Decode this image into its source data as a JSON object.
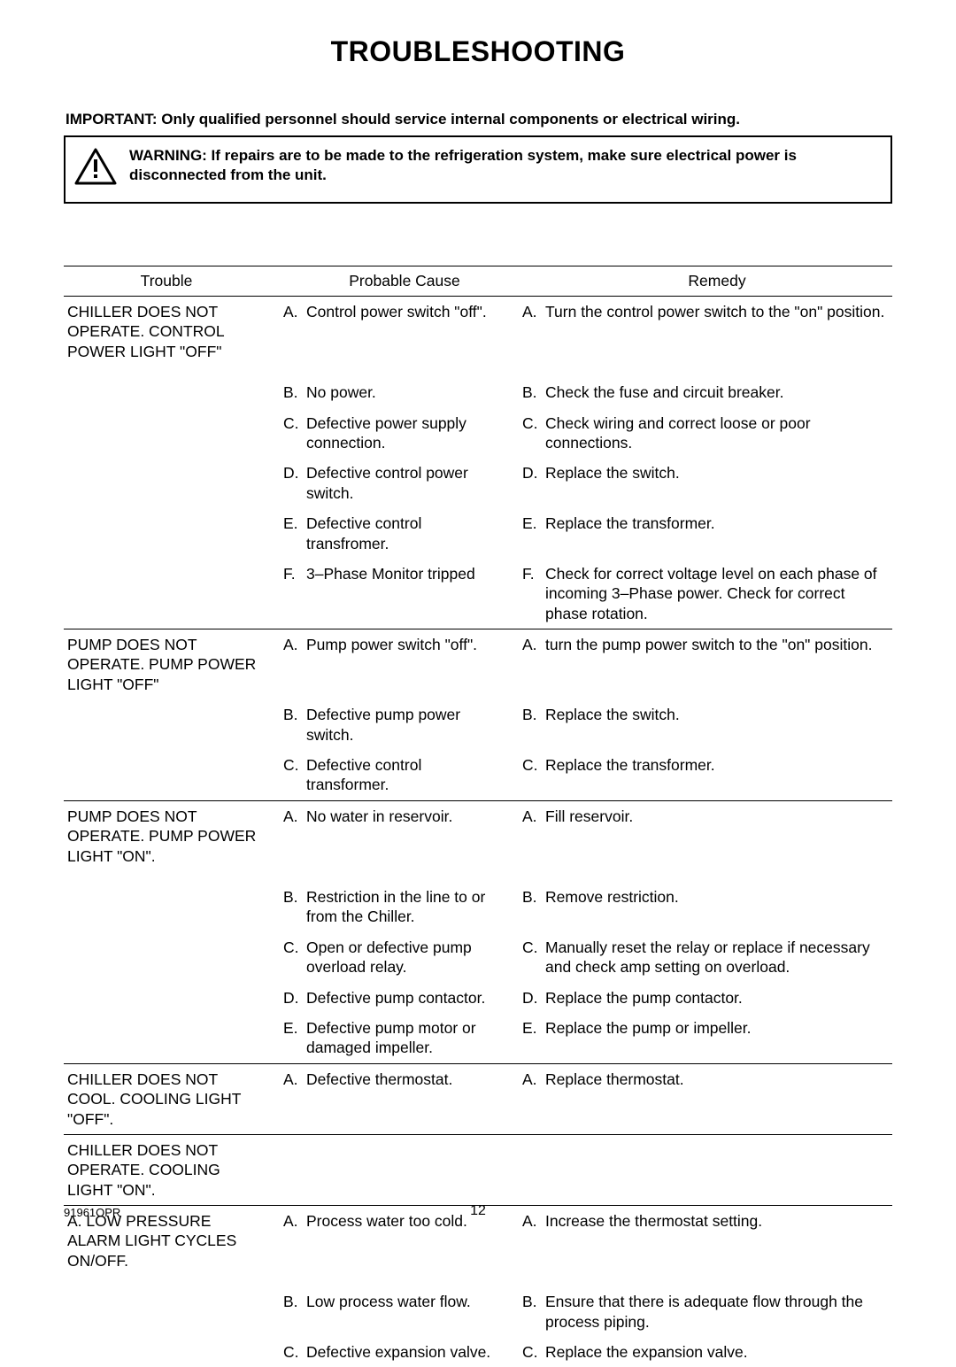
{
  "title": "TROUBLESHOOTING",
  "important": "IMPORTANT:  Only qualified personnel should service internal components or electrical wiring.",
  "warning": "WARNING:   If repairs are to be made to the refrigeration system, make sure electrical power is disconnected from the unit.",
  "headers": {
    "trouble": "Trouble",
    "cause": "Probable Cause",
    "remedy": "Remedy"
  },
  "groups": [
    {
      "trouble": "CHILLER DOES NOT OPERATE. CONTROL POWER LIGHT \"OFF\"",
      "rows": [
        {
          "l": "A.",
          "cause": "Control power switch \"off\".",
          "remedy": "Turn the control power switch to the \"on\" position."
        },
        {
          "l": "B.",
          "cause": "No power.",
          "remedy": "Check the fuse and circuit breaker.",
          "spacer": true
        },
        {
          "l": "C.",
          "cause": "Defective power supply connection.",
          "remedy": "Check wiring and correct loose or poor connections."
        },
        {
          "l": "D.",
          "cause": "Defective control power switch.",
          "remedy": "Replace the switch."
        },
        {
          "l": "E.",
          "cause": "Defective control transfromer.",
          "remedy": "Replace the transformer."
        },
        {
          "l": "F.",
          "cause": "3–Phase Monitor tripped",
          "remedy": "Check for correct voltage level on each phase of incoming 3–Phase power. Check for correct phase rotation."
        }
      ]
    },
    {
      "trouble": "PUMP DOES NOT OPERATE. PUMP POWER LIGHT \"OFF\"",
      "rows": [
        {
          "l": "A.",
          "cause": "Pump power switch \"off\".",
          "remedy": "turn the pump power switch to the \"on\" position."
        },
        {
          "l": "B.",
          "cause": "Defective pump power switch.",
          "remedy": "Replace the switch."
        },
        {
          "l": "C.",
          "cause": "Defective control transformer.",
          "remedy": "Replace the transformer."
        }
      ]
    },
    {
      "trouble": "PUMP DOES NOT OPERATE. PUMP POWER LIGHT \"ON\".",
      "rows": [
        {
          "l": "A.",
          "cause": "No water in reservoir.",
          "remedy": "Fill reservoir."
        },
        {
          "l": "B.",
          "cause": "Restriction in the line to or from the Chiller.",
          "remedy": "Remove restriction.",
          "spacer": true
        },
        {
          "l": "C.",
          "cause": "Open or defective pump overload relay.",
          "remedy": "Manually reset the relay or replace if necessary and check amp setting on overload."
        },
        {
          "l": "D.",
          "cause": "Defective pump contactor.",
          "remedy": "Replace the pump contactor."
        },
        {
          "l": "E.",
          "cause": "Defective pump motor or damaged impeller.",
          "remedy": "Replace the pump or impeller."
        }
      ]
    },
    {
      "trouble": "CHILLER DOES NOT COOL. COOLING LIGHT \"OFF\".",
      "rows": [
        {
          "l": "A.",
          "cause": "Defective thermostat.",
          "remedy": "Replace thermostat."
        }
      ]
    },
    {
      "trouble": "CHILLER DOES NOT OPERATE. COOLING LIGHT \"ON\".",
      "rows": []
    },
    {
      "trouble": "A. LOW PRESSURE ALARM LIGHT CYCLES ON/OFF.",
      "rows": [
        {
          "l": "A.",
          "cause": "Process water too cold.",
          "remedy": "Increase the thermostat setting."
        },
        {
          "l": "B.",
          "cause": "Low process water flow.",
          "remedy": "Ensure that there is adequate flow through the process piping.",
          "spacer": true
        },
        {
          "l": "C.",
          "cause": "Defective expansion valve.",
          "remedy": "Replace the expansion valve."
        }
      ]
    }
  ],
  "footer": {
    "doc": "91961OPR",
    "page": "12"
  },
  "colors": {
    "text": "#000000",
    "bg": "#ffffff",
    "rule": "#000000"
  }
}
